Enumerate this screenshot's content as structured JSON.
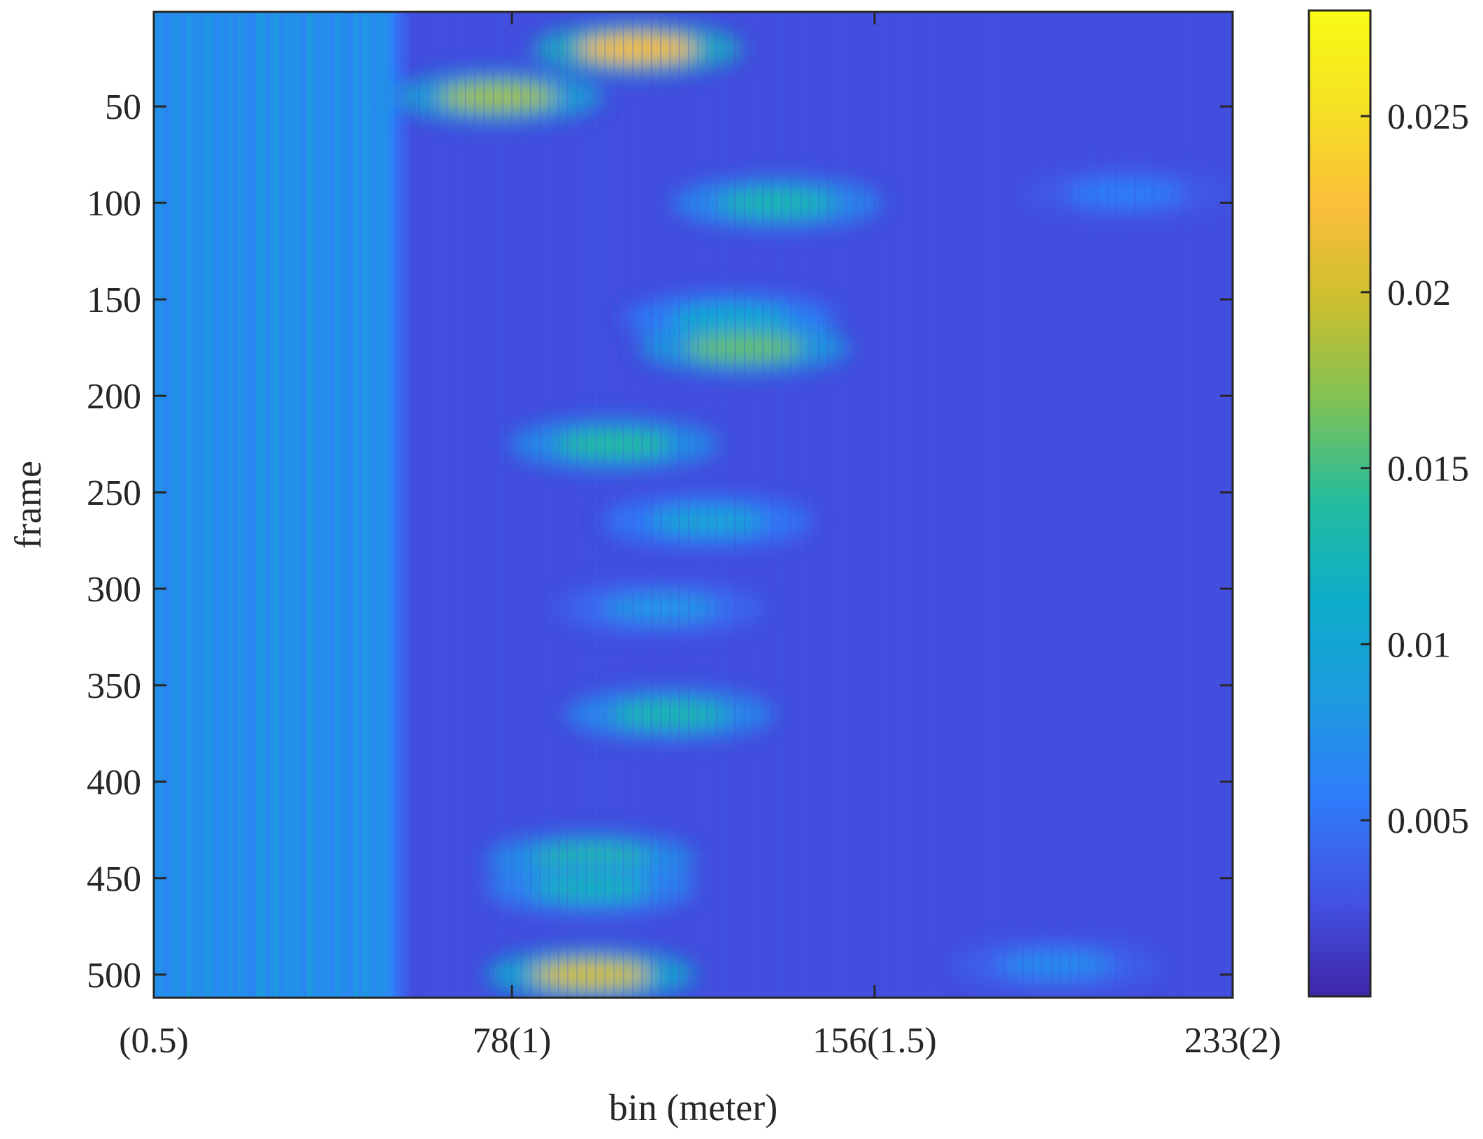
{
  "chart_data": {
    "type": "heatmap",
    "title": "",
    "xlabel": "bin (meter)",
    "ylabel": "frame",
    "x_ticks": [
      {
        "value": 1,
        "label": "(0.5)"
      },
      {
        "value": 78,
        "label": "78(1)"
      },
      {
        "value": 156,
        "label": "156(1.5)"
      },
      {
        "value": 233,
        "label": "233(2)"
      }
    ],
    "y_ticks": [
      {
        "value": 50,
        "label": "50"
      },
      {
        "value": 100,
        "label": "100"
      },
      {
        "value": 150,
        "label": "150"
      },
      {
        "value": 200,
        "label": "200"
      },
      {
        "value": 250,
        "label": "250"
      },
      {
        "value": 300,
        "label": "300"
      },
      {
        "value": 350,
        "label": "350"
      },
      {
        "value": 400,
        "label": "400"
      },
      {
        "value": 450,
        "label": "450"
      },
      {
        "value": 500,
        "label": "500"
      }
    ],
    "xlim": [
      1,
      233
    ],
    "ylim": [
      1,
      512
    ],
    "y_reversed": true,
    "colormap": "parula",
    "colormap_stops": [
      "#3e26a8",
      "#4353e5",
      "#2f7cfb",
      "#1d9ae0",
      "#0dadc9",
      "#22bc9f",
      "#7cc258",
      "#c9bf30",
      "#fbbe3a",
      "#f5e024",
      "#f9fb15"
    ],
    "clim": [
      0,
      0.028
    ],
    "colorbar": {
      "position": "right",
      "ticks": [
        {
          "value": 0.005,
          "label": "0.005"
        },
        {
          "value": 0.01,
          "label": "0.01"
        },
        {
          "value": 0.015,
          "label": "0.015"
        },
        {
          "value": 0.02,
          "label": "0.02"
        },
        {
          "value": 0.025,
          "label": "0.025"
        }
      ]
    },
    "grid": false,
    "background_level": 0.0025,
    "near_field_level": 0.0075,
    "near_field_end_bin": 50,
    "hotspots": [
      {
        "bin": 105,
        "frame": 20,
        "value": 0.022
      },
      {
        "bin": 75,
        "frame": 45,
        "value": 0.018
      },
      {
        "bin": 135,
        "frame": 100,
        "value": 0.013
      },
      {
        "bin": 125,
        "frame": 160,
        "value": 0.011
      },
      {
        "bin": 128,
        "frame": 175,
        "value": 0.016
      },
      {
        "bin": 100,
        "frame": 225,
        "value": 0.014
      },
      {
        "bin": 120,
        "frame": 265,
        "value": 0.01
      },
      {
        "bin": 110,
        "frame": 310,
        "value": 0.008
      },
      {
        "bin": 112,
        "frame": 365,
        "value": 0.013
      },
      {
        "bin": 95,
        "frame": 440,
        "value": 0.014
      },
      {
        "bin": 95,
        "frame": 455,
        "value": 0.012
      },
      {
        "bin": 95,
        "frame": 500,
        "value": 0.02
      },
      {
        "bin": 195,
        "frame": 495,
        "value": 0.007
      },
      {
        "bin": 210,
        "frame": 95,
        "value": 0.006
      }
    ]
  }
}
